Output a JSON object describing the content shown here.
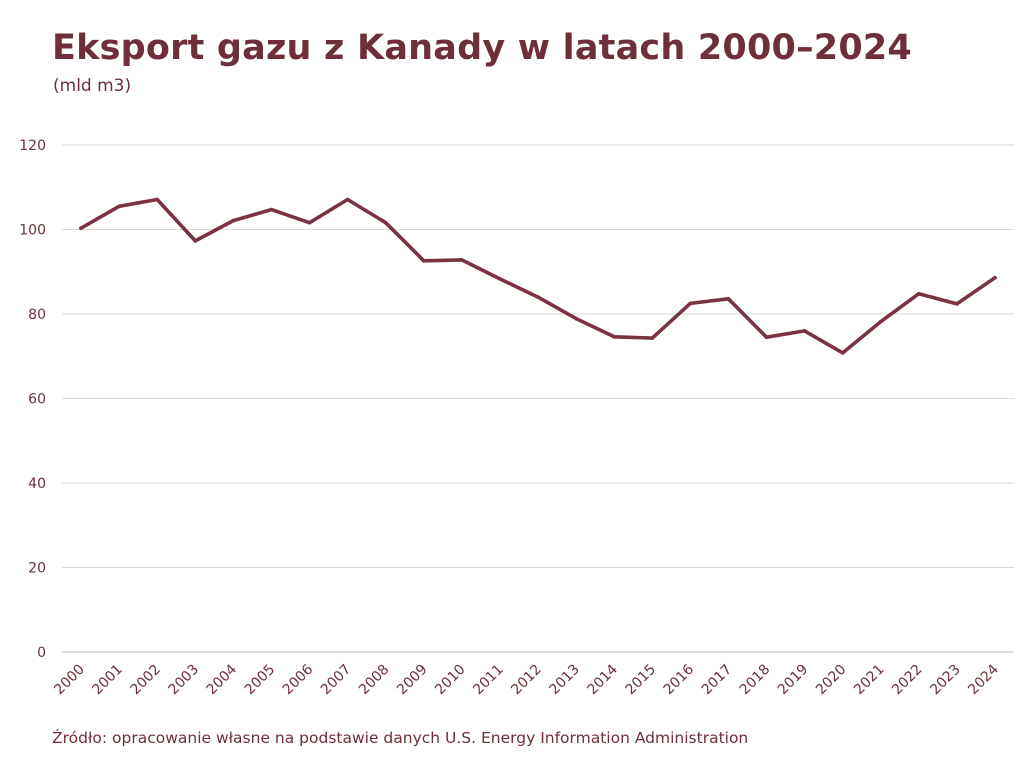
{
  "chart_data": {
    "type": "line",
    "title": "Eksport gazu z Kanady w latach 2000–2024",
    "subtitle": "(mld m3)",
    "xlabel": "",
    "ylabel": "",
    "categories": [
      "2000",
      "2001",
      "2002",
      "2003",
      "2004",
      "2005",
      "2006",
      "2007",
      "2008",
      "2009",
      "2010",
      "2011",
      "2012",
      "2013",
      "2014",
      "2015",
      "2016",
      "2017",
      "2018",
      "2019",
      "2020",
      "2021",
      "2022",
      "2023",
      "2024"
    ],
    "series": [
      {
        "values": [
          100.3,
          105.5,
          107.1,
          97.3,
          102.1,
          104.7,
          101.6,
          107.1,
          101.6,
          92.6,
          92.8,
          88.3,
          84.0,
          78.9,
          74.6,
          74.3,
          82.5,
          83.6,
          74.5,
          76.0,
          70.8,
          78.2,
          84.8,
          82.4,
          88.6
        ],
        "color": "#7a3340"
      }
    ],
    "ylim": [
      0,
      120
    ],
    "yticks": [
      0,
      20,
      40,
      60,
      80,
      100,
      120
    ],
    "grid": true,
    "legend": "none",
    "source": "Źródło: opracowanie własne na podstawie danych U.S. Energy Information Administration"
  },
  "colors": {
    "title": "#6e2f3b",
    "line": "#7a3340",
    "grid": "#d9d9d9",
    "axis": "#bfbfbf"
  }
}
